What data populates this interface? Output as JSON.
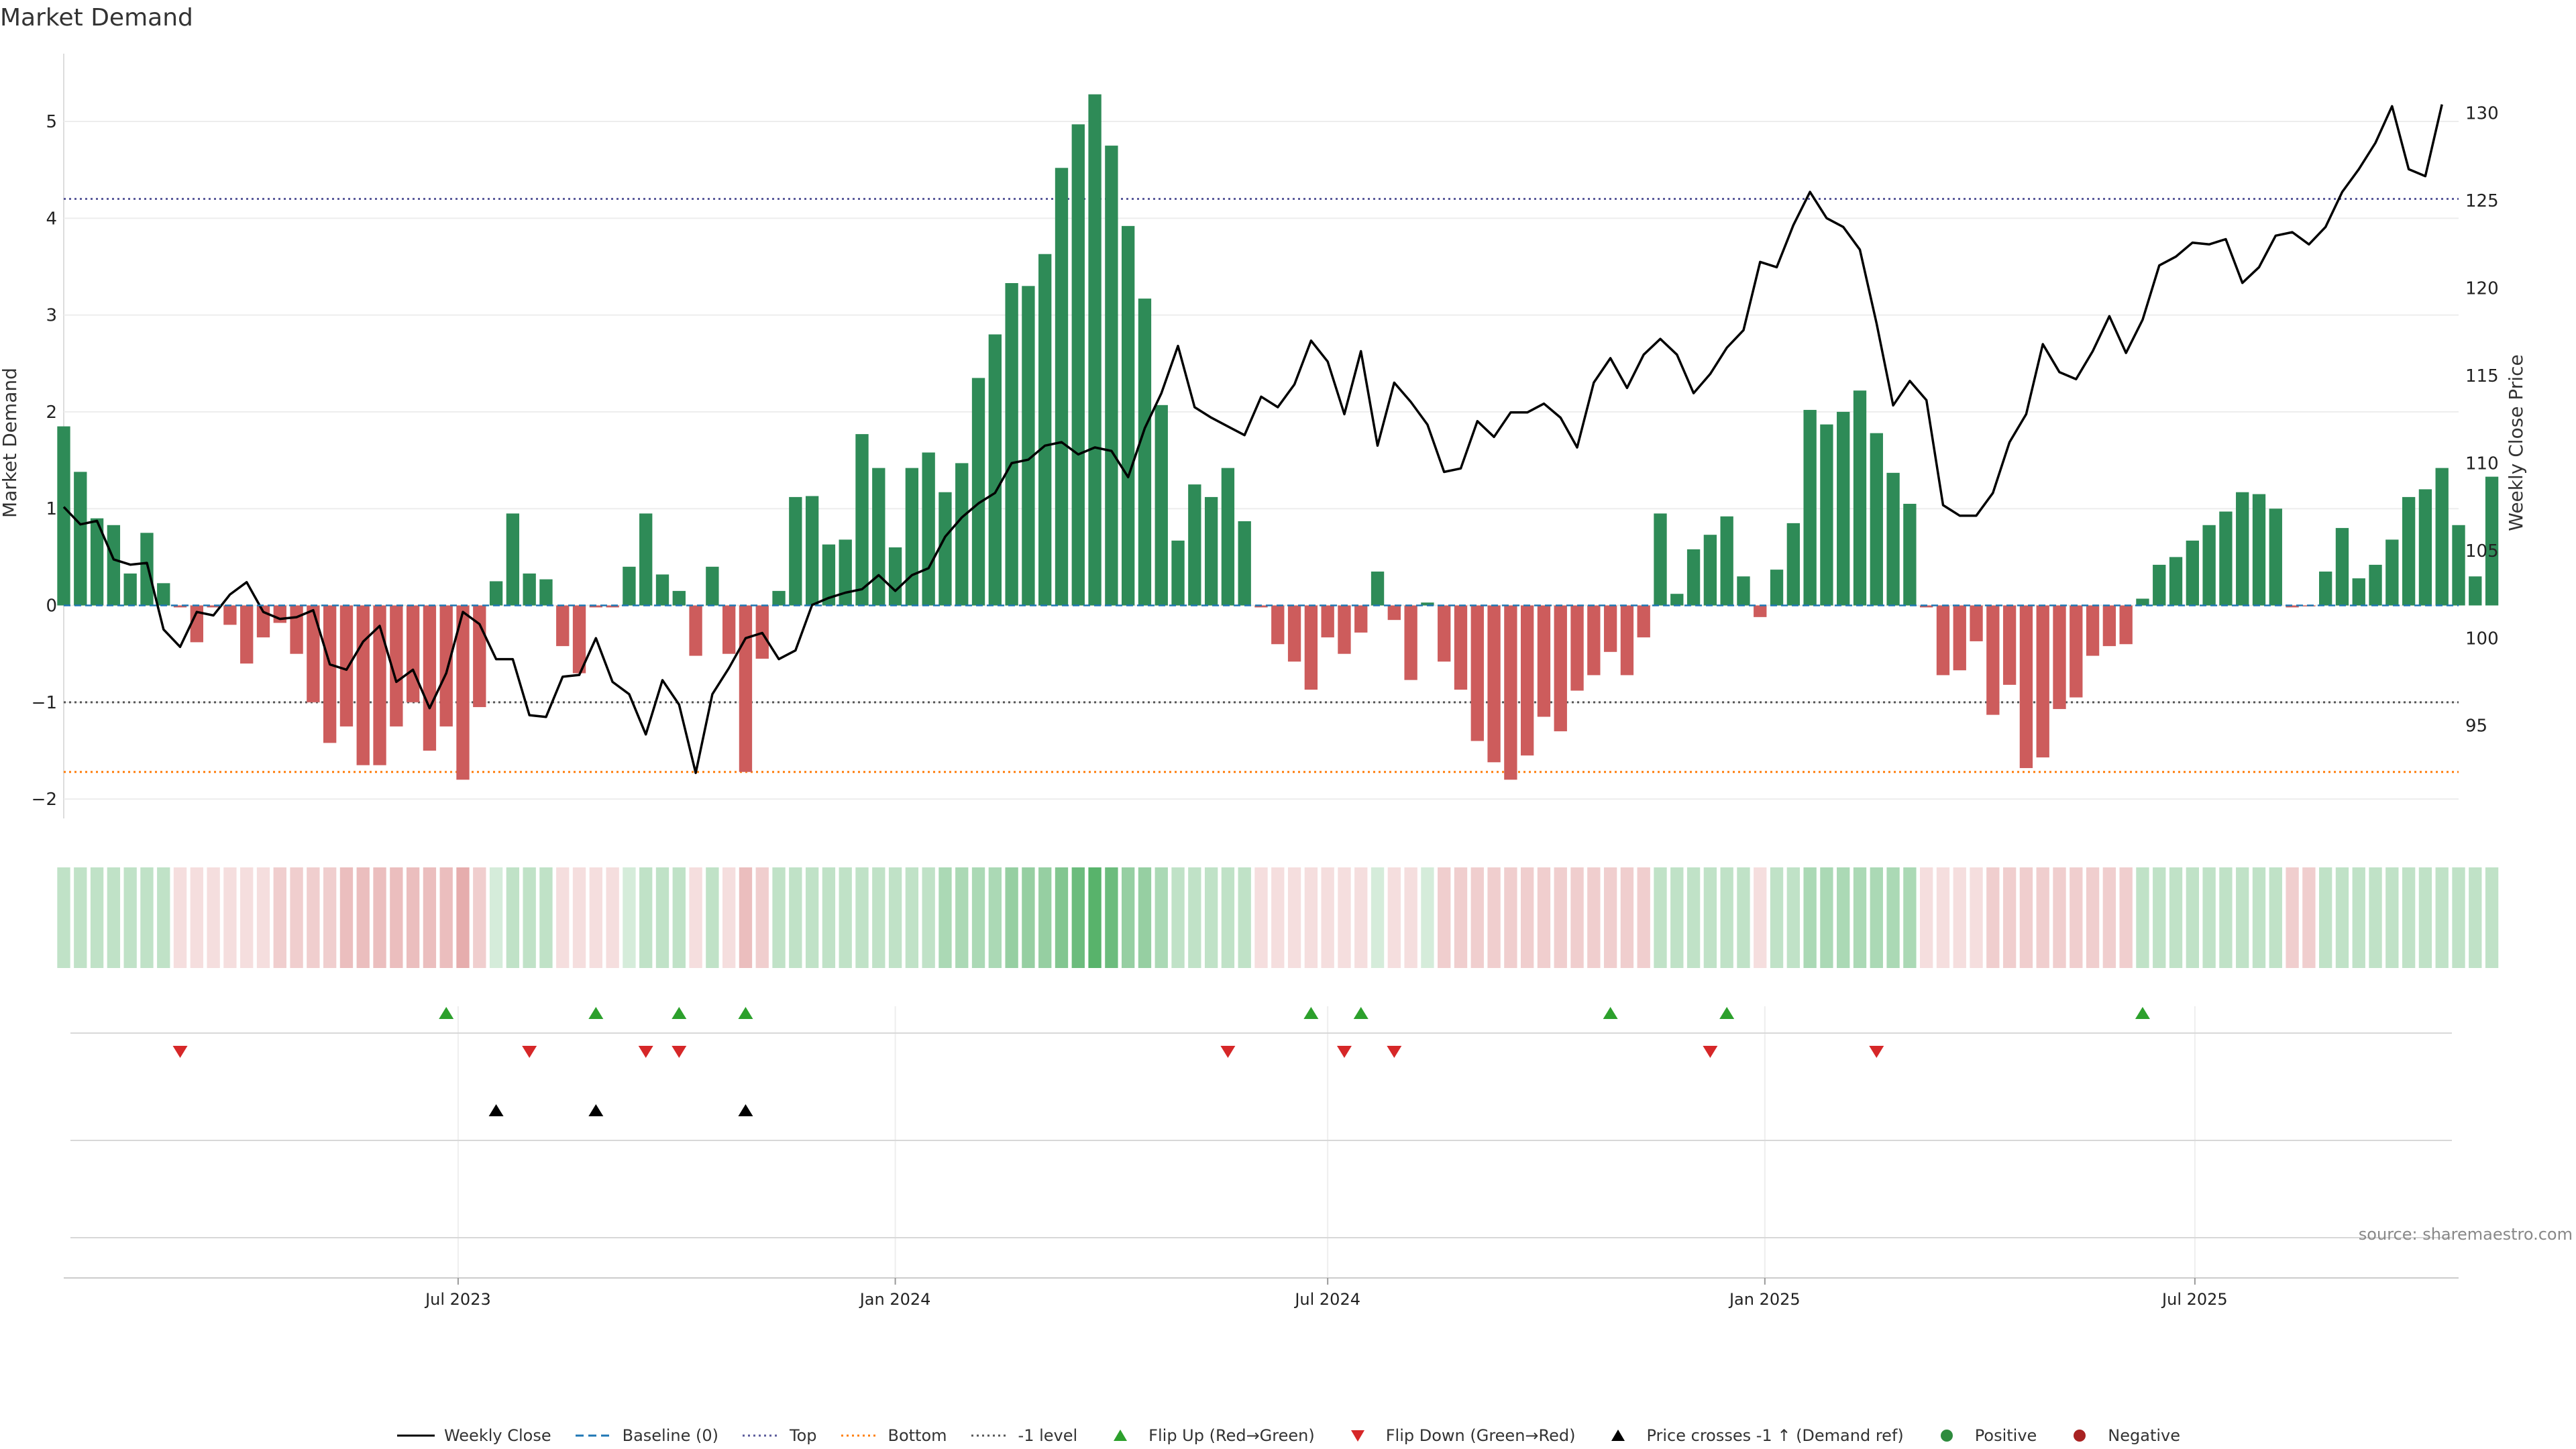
{
  "chart_data": {
    "type": "bar",
    "title": "Market Demand",
    "ylabel": "Market Demand",
    "y2label": "Weekly Close Price",
    "ylim": [
      -2.2,
      5.7
    ],
    "y2lim": [
      89.7,
      133.4
    ],
    "yticks": [
      -2,
      -1,
      0,
      1,
      2,
      3,
      4,
      5
    ],
    "y2ticks": [
      95,
      100,
      105,
      110,
      115,
      120,
      125,
      130
    ],
    "x_range": [
      "2023-01-16",
      "2025-10-20"
    ],
    "x_ticks": [
      {
        "date": "2023-07-01",
        "label": "Jul 2023"
      },
      {
        "date": "2024-01-01",
        "label": "Jan 2024"
      },
      {
        "date": "2024-07-01",
        "label": "Jul 2024"
      },
      {
        "date": "2025-01-01",
        "label": "Jan 2025"
      },
      {
        "date": "2025-07-01",
        "label": "Jul 2025"
      }
    ],
    "start_date": "2023-01-16",
    "interval_days": 7,
    "reference_lines": {
      "top": 4.2,
      "bottom": -1.72,
      "minus_one": -1.0,
      "baseline": 0
    },
    "demand": [
      1.85,
      1.38,
      0.9,
      0.83,
      0.33,
      0.75,
      0.23,
      -0.02,
      -0.38,
      -0.02,
      -0.2,
      -0.6,
      -0.33,
      -0.18,
      -0.5,
      -1.0,
      -1.42,
      -1.25,
      -1.65,
      -1.65,
      -1.25,
      -1.0,
      -1.5,
      -1.25,
      -1.8,
      -1.05,
      0.25,
      0.95,
      0.33,
      0.27,
      -0.42,
      -0.7,
      -0.02,
      -0.02,
      0.4,
      0.95,
      0.32,
      0.15,
      -0.52,
      0.4,
      -0.5,
      -1.72,
      -0.55,
      0.15,
      1.12,
      1.13,
      0.63,
      0.68,
      1.77,
      1.42,
      0.6,
      1.42,
      1.58,
      1.17,
      1.47,
      2.35,
      2.8,
      3.33,
      3.3,
      3.63,
      4.52,
      4.97,
      5.28,
      4.75,
      3.92,
      3.17,
      2.07,
      0.67,
      1.25,
      1.12,
      1.42,
      0.87,
      -0.02,
      -0.4,
      -0.58,
      -0.87,
      -0.33,
      -0.5,
      -0.28,
      0.35,
      -0.15,
      -0.77,
      0.03,
      -0.58,
      -0.87,
      -1.4,
      -1.62,
      -1.8,
      -1.55,
      -1.15,
      -1.3,
      -0.88,
      -0.72,
      -0.48,
      -0.72,
      -0.33,
      0.95,
      0.12,
      0.58,
      0.73,
      0.92,
      0.3,
      -0.12,
      0.37,
      0.85,
      2.02,
      1.87,
      2.0,
      2.22,
      1.78,
      1.37,
      1.05,
      -0.02,
      -0.72,
      -0.67,
      -0.37,
      -1.13,
      -0.82,
      -1.68,
      -1.57,
      -1.07,
      -0.95,
      -0.52,
      -0.42,
      -0.4,
      0.07,
      0.42,
      0.5,
      0.67,
      0.83,
      0.97,
      1.17,
      1.15,
      1.0,
      -0.02,
      -0.01,
      0.35,
      0.8,
      0.28,
      0.42,
      0.68,
      1.12,
      1.2,
      1.42,
      0.83,
      0.3,
      1.33
    ],
    "weekly_close": [
      107.5,
      106.5,
      106.7,
      104.5,
      104.2,
      104.3,
      100.5,
      99.5,
      101.5,
      101.3,
      102.5,
      103.2,
      101.5,
      101.1,
      101.2,
      101.6,
      98.5,
      98.2,
      99.8,
      100.7,
      97.5,
      98.2,
      96.0,
      98.0,
      101.5,
      100.8,
      98.8,
      98.8,
      95.6,
      95.5,
      97.8,
      97.9,
      100.0,
      97.5,
      96.8,
      94.5,
      97.6,
      96.2,
      92.3,
      96.8,
      98.3,
      100.0,
      100.3,
      98.8,
      99.3,
      101.9,
      102.3,
      102.6,
      102.8,
      103.6,
      102.7,
      103.6,
      104.0,
      105.8,
      106.9,
      107.7,
      108.3,
      110.0,
      110.2,
      111.0,
      111.2,
      110.5,
      110.9,
      110.7,
      109.2,
      112.0,
      114.0,
      116.7,
      113.2,
      112.6,
      112.1,
      111.6,
      113.8,
      113.2,
      114.5,
      117.0,
      115.8,
      112.8,
      116.4,
      111.0,
      114.6,
      113.5,
      112.2,
      109.5,
      109.7,
      112.4,
      111.5,
      112.9,
      112.9,
      113.4,
      112.6,
      110.9,
      114.6,
      116.0,
      114.3,
      116.2,
      117.1,
      116.2,
      114.0,
      115.1,
      116.6,
      117.6,
      121.5,
      121.2,
      123.6,
      125.5,
      124.0,
      123.5,
      122.2,
      118.0,
      113.3,
      114.7,
      113.6,
      107.6,
      107.0,
      107.0,
      108.3,
      111.2,
      112.8,
      116.8,
      115.2,
      114.8,
      116.4,
      118.4,
      116.3,
      118.2,
      121.3,
      121.8,
      122.6,
      122.5,
      122.8,
      120.3,
      121.2,
      123.0,
      123.2,
      122.5,
      123.5,
      125.5,
      126.8,
      128.3,
      130.4,
      126.8,
      126.4,
      130.5
    ],
    "heat_levels": [
      0.3,
      0.3,
      0.3,
      0.3,
      0.3,
      0.3,
      0.3,
      0.2,
      0.2,
      0.2,
      0.2,
      0.2,
      0.2,
      0.3,
      0.3,
      0.3,
      0.3,
      0.4,
      0.4,
      0.4,
      0.4,
      0.4,
      0.4,
      0.4,
      0.5,
      0.3,
      0.2,
      0.3,
      0.3,
      0.3,
      0.2,
      0.2,
      0.2,
      0.2,
      0.2,
      0.3,
      0.3,
      0.3,
      0.2,
      0.3,
      0.2,
      0.4,
      0.3,
      0.3,
      0.3,
      0.3,
      0.3,
      0.3,
      0.3,
      0.3,
      0.3,
      0.3,
      0.3,
      0.4,
      0.4,
      0.4,
      0.4,
      0.5,
      0.5,
      0.5,
      0.6,
      0.7,
      0.8,
      0.7,
      0.5,
      0.5,
      0.4,
      0.3,
      0.3,
      0.3,
      0.3,
      0.3,
      0.2,
      0.2,
      0.2,
      0.2,
      0.2,
      0.2,
      0.2,
      0.2,
      0.2,
      0.2,
      0.2,
      0.3,
      0.3,
      0.3,
      0.3,
      0.3,
      0.3,
      0.3,
      0.3,
      0.3,
      0.3,
      0.3,
      0.3,
      0.3,
      0.3,
      0.3,
      0.3,
      0.3,
      0.3,
      0.3,
      0.2,
      0.3,
      0.3,
      0.4,
      0.4,
      0.4,
      0.4,
      0.4,
      0.4,
      0.4,
      0.2,
      0.2,
      0.2,
      0.2,
      0.3,
      0.3,
      0.3,
      0.3,
      0.3,
      0.3,
      0.3,
      0.3,
      0.3,
      0.3,
      0.3,
      0.3,
      0.3,
      0.3,
      0.3,
      0.3,
      0.3,
      0.3,
      0.3,
      0.3,
      0.3,
      0.3,
      0.3,
      0.3,
      0.3,
      0.3,
      0.3,
      0.3,
      0.3,
      0.3,
      0.3
    ],
    "flip_up_dates": [
      "2023-06-26",
      "2023-08-28",
      "2023-10-02",
      "2023-10-30",
      "2024-06-24",
      "2024-07-15",
      "2024-10-28",
      "2024-12-16",
      "2025-06-09"
    ],
    "flip_down_dates": [
      "2023-03-06",
      "2023-07-31",
      "2023-09-18",
      "2023-10-02",
      "2024-05-20",
      "2024-07-08",
      "2024-07-29",
      "2024-12-09",
      "2025-02-17"
    ],
    "price_cross_dates": [
      "2023-07-17",
      "2023-08-28",
      "2023-10-30"
    ],
    "legend": [
      {
        "key": "line",
        "label": "Weekly Close",
        "color": "#000000"
      },
      {
        "key": "dash",
        "label": "Baseline (0)",
        "color": "#1f77b4"
      },
      {
        "key": "dot",
        "label": "Top",
        "color": "#5a5a9a"
      },
      {
        "key": "dot",
        "label": "Bottom",
        "color": "#ff7f0e"
      },
      {
        "key": "dot",
        "label": "-1 level",
        "color": "#555555"
      },
      {
        "key": "tri-up",
        "label": "Flip Up (Red→Green)",
        "color": "#2ca02c"
      },
      {
        "key": "tri-down",
        "label": "Flip Down (Green→Red)",
        "color": "#d62728"
      },
      {
        "key": "tri-up",
        "label": "Price crosses -1 ↑ (Demand ref)",
        "color": "#000000"
      },
      {
        "key": "dot-circle",
        "label": "Positive",
        "color": "#2e8b3e"
      },
      {
        "key": "dot-circle",
        "label": "Negative",
        "color": "#a82222"
      }
    ],
    "source": "source: sharemaestro.com"
  },
  "colors": {
    "positive_bar": "#2e8b57",
    "negative_bar": "#cd5c5c",
    "close_line": "#000000",
    "flip_up": "#2ca02c",
    "flip_down": "#d62728",
    "price_cross": "#000000"
  }
}
